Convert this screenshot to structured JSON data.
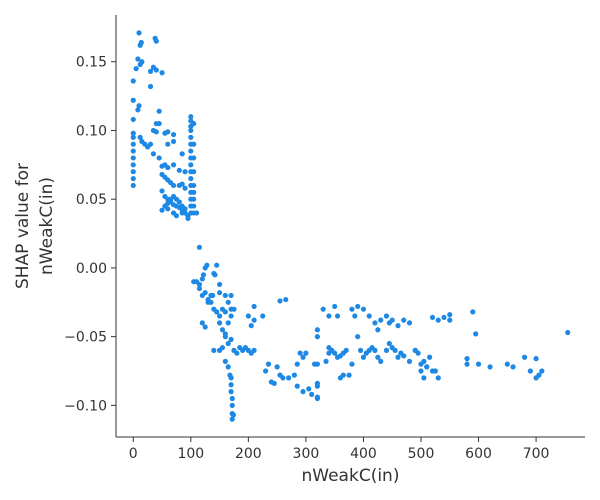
{
  "chart_data": {
    "type": "scatter",
    "title": "",
    "xlabel": "nWeakC(in)",
    "ylabel": [
      "SHAP value for",
      "nWeakC(in)"
    ],
    "xlim": [
      -30,
      785
    ],
    "ylim": [
      -0.123,
      0.184
    ],
    "x_ticks": [
      0,
      100,
      200,
      300,
      400,
      500,
      600,
      700
    ],
    "y_ticks": [
      -0.1,
      -0.05,
      0.0,
      0.05,
      0.1,
      0.15
    ],
    "x_tick_labels": [
      "0",
      "100",
      "200",
      "300",
      "400",
      "500",
      "600",
      "700"
    ],
    "y_tick_labels": [
      "−0.10",
      "−0.05",
      "0.00",
      "0.05",
      "0.10",
      "0.15"
    ],
    "grid": false,
    "point_color": "#1e88e5",
    "points": [
      [
        0,
        0.06
      ],
      [
        0,
        0.065
      ],
      [
        0,
        0.07
      ],
      [
        0,
        0.075
      ],
      [
        0,
        0.08
      ],
      [
        0,
        0.085
      ],
      [
        0,
        0.09
      ],
      [
        0,
        0.095
      ],
      [
        0,
        0.098
      ],
      [
        0,
        0.108
      ],
      [
        0,
        0.122
      ],
      [
        0,
        0.136
      ],
      [
        5,
        0.145
      ],
      [
        8,
        0.152
      ],
      [
        10,
        0.171
      ],
      [
        12,
        0.162
      ],
      [
        14,
        0.164
      ],
      [
        12,
        0.148
      ],
      [
        15,
        0.15
      ],
      [
        10,
        0.118
      ],
      [
        8,
        0.115
      ],
      [
        12,
        0.095
      ],
      [
        15,
        0.092
      ],
      [
        20,
        0.09
      ],
      [
        25,
        0.088
      ],
      [
        30,
        0.09
      ],
      [
        30,
        0.143
      ],
      [
        35,
        0.146
      ],
      [
        40,
        0.144
      ],
      [
        40,
        0.165
      ],
      [
        38,
        0.167
      ],
      [
        50,
        0.142
      ],
      [
        30,
        0.132
      ],
      [
        45,
        0.114
      ],
      [
        40,
        0.105
      ],
      [
        45,
        0.105
      ],
      [
        35,
        0.1
      ],
      [
        40,
        0.099
      ],
      [
        55,
        0.098
      ],
      [
        60,
        0.099
      ],
      [
        70,
        0.097
      ],
      [
        70,
        0.092
      ],
      [
        60,
        0.09
      ],
      [
        35,
        0.083
      ],
      [
        45,
        0.08
      ],
      [
        50,
        0.074
      ],
      [
        55,
        0.075
      ],
      [
        60,
        0.073
      ],
      [
        70,
        0.075
      ],
      [
        80,
        0.071
      ],
      [
        85,
        0.083
      ],
      [
        90,
        0.07
      ],
      [
        50,
        0.068
      ],
      [
        55,
        0.066
      ],
      [
        60,
        0.064
      ],
      [
        65,
        0.062
      ],
      [
        70,
        0.06
      ],
      [
        80,
        0.06
      ],
      [
        85,
        0.061
      ],
      [
        90,
        0.058
      ],
      [
        50,
        0.056
      ],
      [
        55,
        0.052
      ],
      [
        60,
        0.05
      ],
      [
        65,
        0.048
      ],
      [
        70,
        0.046
      ],
      [
        75,
        0.045
      ],
      [
        80,
        0.044
      ],
      [
        85,
        0.042
      ],
      [
        90,
        0.04
      ],
      [
        95,
        0.038
      ],
      [
        55,
        0.045
      ],
      [
        60,
        0.047
      ],
      [
        65,
        0.05
      ],
      [
        70,
        0.052
      ],
      [
        75,
        0.05
      ],
      [
        80,
        0.048
      ],
      [
        85,
        0.045
      ],
      [
        90,
        0.043
      ],
      [
        50,
        0.042
      ],
      [
        60,
        0.043
      ],
      [
        70,
        0.04
      ],
      [
        75,
        0.038
      ],
      [
        85,
        0.04
      ],
      [
        95,
        0.036
      ],
      [
        110,
        0.04
      ],
      [
        100,
        0.11
      ],
      [
        100,
        0.107
      ],
      [
        100,
        0.103
      ],
      [
        100,
        0.1
      ],
      [
        100,
        0.095
      ],
      [
        100,
        0.09
      ],
      [
        100,
        0.085
      ],
      [
        100,
        0.08
      ],
      [
        100,
        0.075
      ],
      [
        100,
        0.07
      ],
      [
        100,
        0.065
      ],
      [
        100,
        0.06
      ],
      [
        100,
        0.055
      ],
      [
        100,
        0.05
      ],
      [
        100,
        0.045
      ],
      [
        100,
        0.04
      ],
      [
        105,
        0.105
      ],
      [
        105,
        0.09
      ],
      [
        105,
        0.08
      ],
      [
        105,
        0.07
      ],
      [
        105,
        0.06
      ],
      [
        105,
        0.055
      ],
      [
        105,
        0.05
      ],
      [
        105,
        0.045
      ],
      [
        105,
        0.04
      ],
      [
        115,
        0.015
      ],
      [
        105,
        -0.01
      ],
      [
        110,
        -0.01
      ],
      [
        115,
        -0.012
      ],
      [
        120,
        -0.008
      ],
      [
        122,
        -0.005
      ],
      [
        125,
        0.0
      ],
      [
        128,
        0.002
      ],
      [
        115,
        -0.015
      ],
      [
        120,
        -0.02
      ],
      [
        125,
        -0.018
      ],
      [
        130,
        -0.023
      ],
      [
        135,
        -0.02
      ],
      [
        138,
        -0.02
      ],
      [
        140,
        -0.004
      ],
      [
        142,
        -0.005
      ],
      [
        145,
        0.002
      ],
      [
        150,
        -0.012
      ],
      [
        150,
        -0.018
      ],
      [
        120,
        -0.04
      ],
      [
        125,
        -0.043
      ],
      [
        130,
        -0.025
      ],
      [
        135,
        -0.025
      ],
      [
        140,
        -0.03
      ],
      [
        145,
        -0.032
      ],
      [
        150,
        -0.04
      ],
      [
        155,
        -0.045
      ],
      [
        160,
        -0.048
      ],
      [
        165,
        -0.04
      ],
      [
        170,
        -0.035
      ],
      [
        170,
        -0.03
      ],
      [
        160,
        -0.02
      ],
      [
        165,
        -0.025
      ],
      [
        170,
        -0.02
      ],
      [
        175,
        -0.03
      ],
      [
        160,
        -0.032
      ],
      [
        155,
        -0.03
      ],
      [
        150,
        -0.035
      ],
      [
        140,
        -0.06
      ],
      [
        150,
        -0.06
      ],
      [
        155,
        -0.058
      ],
      [
        160,
        -0.05
      ],
      [
        165,
        -0.055
      ],
      [
        170,
        -0.052
      ],
      [
        175,
        -0.06
      ],
      [
        180,
        -0.062
      ],
      [
        160,
        -0.068
      ],
      [
        165,
        -0.072
      ],
      [
        168,
        -0.078
      ],
      [
        170,
        -0.08
      ],
      [
        170,
        -0.085
      ],
      [
        170,
        -0.09
      ],
      [
        172,
        -0.095
      ],
      [
        172,
        -0.1
      ],
      [
        172,
        -0.106
      ],
      [
        172,
        -0.11
      ],
      [
        174,
        -0.107
      ],
      [
        185,
        -0.058
      ],
      [
        190,
        -0.06
      ],
      [
        195,
        -0.058
      ],
      [
        200,
        -0.06
      ],
      [
        205,
        -0.062
      ],
      [
        210,
        -0.06
      ],
      [
        200,
        -0.035
      ],
      [
        205,
        -0.042
      ],
      [
        210,
        -0.038
      ],
      [
        210,
        -0.028
      ],
      [
        225,
        -0.035
      ],
      [
        230,
        -0.075
      ],
      [
        235,
        -0.07
      ],
      [
        240,
        -0.083
      ],
      [
        245,
        -0.084
      ],
      [
        250,
        -0.072
      ],
      [
        255,
        -0.078
      ],
      [
        260,
        -0.08
      ],
      [
        255,
        -0.024
      ],
      [
        265,
        -0.023
      ],
      [
        270,
        -0.08
      ],
      [
        280,
        -0.078
      ],
      [
        285,
        -0.07
      ],
      [
        290,
        -0.062
      ],
      [
        295,
        -0.065
      ],
      [
        300,
        -0.062
      ],
      [
        295,
        -0.09
      ],
      [
        285,
        -0.086
      ],
      [
        305,
        -0.088
      ],
      [
        310,
        -0.092
      ],
      [
        315,
        -0.07
      ],
      [
        320,
        -0.07
      ],
      [
        320,
        -0.084
      ],
      [
        320,
        -0.086
      ],
      [
        320,
        -0.094
      ],
      [
        320,
        -0.095
      ],
      [
        320,
        -0.05
      ],
      [
        320,
        -0.045
      ],
      [
        330,
        -0.03
      ],
      [
        335,
        -0.068
      ],
      [
        340,
        -0.062
      ],
      [
        340,
        -0.058
      ],
      [
        345,
        -0.06
      ],
      [
        350,
        -0.062
      ],
      [
        355,
        -0.065
      ],
      [
        360,
        -0.064
      ],
      [
        365,
        -0.062
      ],
      [
        370,
        -0.06
      ],
      [
        340,
        -0.035
      ],
      [
        350,
        -0.028
      ],
      [
        355,
        -0.035
      ],
      [
        360,
        -0.08
      ],
      [
        365,
        -0.078
      ],
      [
        375,
        -0.078
      ],
      [
        380,
        -0.07
      ],
      [
        380,
        -0.03
      ],
      [
        385,
        -0.035
      ],
      [
        390,
        -0.05
      ],
      [
        395,
        -0.06
      ],
      [
        400,
        -0.065
      ],
      [
        405,
        -0.062
      ],
      [
        410,
        -0.06
      ],
      [
        415,
        -0.058
      ],
      [
        420,
        -0.06
      ],
      [
        425,
        -0.065
      ],
      [
        430,
        -0.068
      ],
      [
        440,
        -0.06
      ],
      [
        445,
        -0.055
      ],
      [
        450,
        -0.058
      ],
      [
        455,
        -0.06
      ],
      [
        460,
        -0.065
      ],
      [
        465,
        -0.062
      ],
      [
        470,
        -0.064
      ],
      [
        480,
        -0.068
      ],
      [
        390,
        -0.028
      ],
      [
        400,
        -0.03
      ],
      [
        410,
        -0.035
      ],
      [
        420,
        -0.04
      ],
      [
        425,
        -0.045
      ],
      [
        430,
        -0.038
      ],
      [
        440,
        -0.035
      ],
      [
        445,
        -0.04
      ],
      [
        450,
        -0.038
      ],
      [
        460,
        -0.042
      ],
      [
        470,
        -0.038
      ],
      [
        480,
        -0.04
      ],
      [
        490,
        -0.06
      ],
      [
        495,
        -0.062
      ],
      [
        500,
        -0.07
      ],
      [
        505,
        -0.068
      ],
      [
        510,
        -0.072
      ],
      [
        515,
        -0.065
      ],
      [
        490,
        -0.06
      ],
      [
        500,
        -0.075
      ],
      [
        505,
        -0.08
      ],
      [
        510,
        -0.072
      ],
      [
        520,
        -0.075
      ],
      [
        525,
        -0.075
      ],
      [
        530,
        -0.08
      ],
      [
        520,
        -0.036
      ],
      [
        530,
        -0.038
      ],
      [
        540,
        -0.036
      ],
      [
        550,
        -0.034
      ],
      [
        550,
        -0.038
      ],
      [
        580,
        -0.066
      ],
      [
        580,
        -0.07
      ],
      [
        590,
        -0.032
      ],
      [
        595,
        -0.048
      ],
      [
        600,
        -0.07
      ],
      [
        620,
        -0.072
      ],
      [
        650,
        -0.07
      ],
      [
        660,
        -0.072
      ],
      [
        680,
        -0.065
      ],
      [
        690,
        -0.075
      ],
      [
        700,
        -0.066
      ],
      [
        700,
        -0.08
      ],
      [
        705,
        -0.078
      ],
      [
        710,
        -0.075
      ],
      [
        755,
        -0.047
      ]
    ]
  }
}
